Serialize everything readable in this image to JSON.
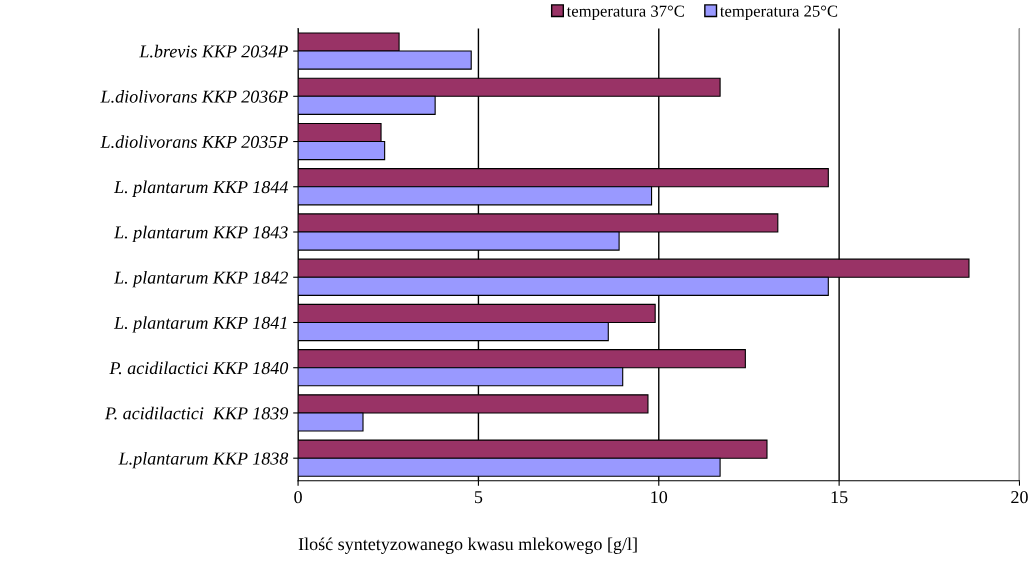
{
  "chart_data": {
    "type": "bar",
    "orientation": "horizontal",
    "categories": [
      "L.brevis KKP 2034P",
      "L.diolivorans KKP 2036P",
      "L.diolivorans KKP 2035P",
      "L. plantarum KKP 1844",
      "L. plantarum KKP 1843",
      "L. plantarum KKP 1842",
      "L. plantarum KKP 1841",
      "P. acidilactici KKP 1840",
      "P. acidilactici  KKP 1839",
      "L.plantarum KKP 1838"
    ],
    "series": [
      {
        "name": "temperatura 37°C",
        "color": "#993366",
        "values": [
          2.8,
          11.7,
          2.3,
          14.7,
          13.3,
          18.6,
          9.9,
          12.4,
          9.7,
          13.0
        ]
      },
      {
        "name": "temperatura 25°C",
        "color": "#9999ff",
        "values": [
          4.8,
          3.8,
          2.4,
          9.8,
          8.9,
          14.7,
          8.6,
          9.0,
          1.8,
          11.7
        ]
      }
    ],
    "xlabel": "Ilość syntetyzowanego kwasu mlekowego [g/l]",
    "xlim": [
      0,
      20
    ],
    "xticks": [
      0,
      5,
      10,
      15,
      20
    ],
    "grid": "x",
    "legend": "top"
  }
}
